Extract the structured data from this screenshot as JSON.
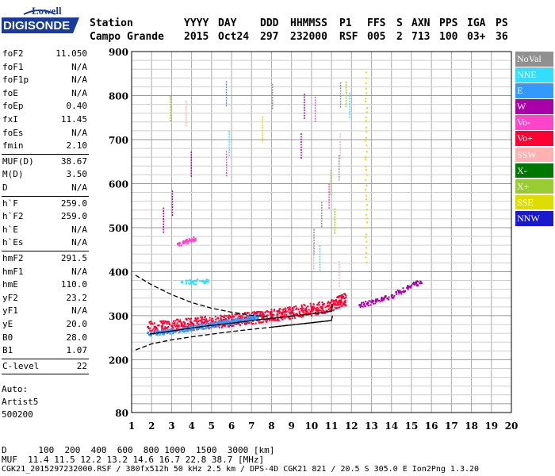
{
  "logo": {
    "line1": "Lowell",
    "line2": "DIGISONDE"
  },
  "header": {
    "row1": [
      "Station",
      "YYYY",
      "DAY",
      "DDD",
      "HHMMSS",
      "P1",
      "FFS",
      "S",
      "AXN",
      "PPS",
      "IGA",
      "PS"
    ],
    "row2": [
      "Campo Grande",
      "2015",
      "Oct24",
      "297",
      "232000",
      "RSF",
      "005",
      "2",
      "713",
      "100",
      "03+",
      "36"
    ]
  },
  "params": [
    {
      "k": "foF2",
      "v": "11.050"
    },
    {
      "k": "foF1",
      "v": "N/A"
    },
    {
      "k": "foF1p",
      "v": "N/A"
    },
    {
      "k": "foE",
      "v": "N/A"
    },
    {
      "k": "foEp",
      "v": "0.40"
    },
    {
      "k": "fxI",
      "v": "11.45"
    },
    {
      "k": "foEs",
      "v": "N/A"
    },
    {
      "k": "fmin",
      "v": "2.10"
    },
    {
      "k": "MUF(D)",
      "v": "38.67"
    },
    {
      "k": "M(D)",
      "v": "3.50"
    },
    {
      "k": "D",
      "v": "N/A"
    },
    {
      "k": "h`F",
      "v": "259.0"
    },
    {
      "k": "h`F2",
      "v": "259.0"
    },
    {
      "k": "h`E",
      "v": "N/A"
    },
    {
      "k": "h`Es",
      "v": "N/A"
    },
    {
      "k": "hmF2",
      "v": "291.5"
    },
    {
      "k": "hmF1",
      "v": "N/A"
    },
    {
      "k": "hmE",
      "v": "110.0"
    },
    {
      "k": "yF2",
      "v": "23.2"
    },
    {
      "k": "yF1",
      "v": "N/A"
    },
    {
      "k": "yE",
      "v": "20.0"
    },
    {
      "k": "B0",
      "v": "28.0"
    },
    {
      "k": "B1",
      "v": "1.07"
    },
    {
      "k": "C-level",
      "v": "22"
    }
  ],
  "auto": {
    "line1": "Auto:",
    "line2": "Artist5",
    "line3": "500200"
  },
  "legend": [
    {
      "label": "NoVal",
      "color": "#909090"
    },
    {
      "label": "NNE",
      "color": "#33ddff"
    },
    {
      "label": "E",
      "color": "#3399ff"
    },
    {
      "label": "W",
      "color": "#aa00aa"
    },
    {
      "label": "Vo-",
      "color": "#ff44cc"
    },
    {
      "label": "Vo+",
      "color": "#ff0033"
    },
    {
      "label": "SSW",
      "color": "#ffb0b0"
    },
    {
      "label": "X-",
      "color": "#007700"
    },
    {
      "label": "X+",
      "color": "#99cc33"
    },
    {
      "label": "SSE",
      "color": "#dddd00"
    },
    {
      "label": "NNW",
      "color": "#1a1acc"
    }
  ],
  "footer": {
    "d_line": "D      100  200  400  600  800 1000  1500  3000 [km]",
    "muf_line": "MUF  11.4 11.5 12.2 13.2 14.6 16.7 22.8 38.7 [MHz]",
    "info_line": "CGK21_2015297232000.RSF / 380fx512h 50 kHz 2.5 km / DPS-4D CGK21 821 / 20.5 S 305.0 E Ion2Png 1.3.20"
  },
  "chart_data": {
    "type": "scatter",
    "title": "",
    "xlabel": "",
    "ylabel": "",
    "xlim": [
      1,
      20
    ],
    "ylim": [
      80,
      900
    ],
    "x_ticks": [
      1,
      2,
      3,
      4,
      5,
      6,
      7,
      8,
      9,
      10,
      11,
      12,
      13,
      14,
      15,
      16,
      17,
      18,
      19,
      20
    ],
    "y_ticks": [
      80,
      200,
      300,
      400,
      500,
      600,
      700,
      800,
      900
    ],
    "grid": true,
    "legend_position": "right",
    "series": [
      {
        "name": "Vo+",
        "color": "#ff0033",
        "x": [
          1.8,
          2.5,
          3.0,
          3.5,
          4.0,
          4.5,
          5.0,
          5.5,
          6.0,
          6.5,
          7.0,
          7.5,
          8.0,
          8.5,
          9.0,
          9.5,
          10.0,
          10.5,
          11.0,
          11.4
        ],
        "y": [
          275,
          276,
          278,
          281,
          283,
          285,
          287,
          289,
          292,
          294,
          297,
          300,
          303,
          306,
          309,
          313,
          316,
          320,
          325,
          335
        ]
      },
      {
        "name": "E",
        "color": "#3399ff",
        "x": [
          1.8,
          2.5,
          3.0,
          3.5,
          4.0,
          4.5,
          5.0,
          5.5,
          6.0,
          6.5,
          7.0
        ],
        "y": [
          262,
          264,
          267,
          270,
          274,
          277,
          281,
          284,
          288,
          292,
          296
        ]
      },
      {
        "name": "W",
        "color": "#aa00aa",
        "x": [
          12.4,
          12.8,
          13.2,
          13.6,
          14.0,
          14.4,
          14.8,
          15.2
        ],
        "y": [
          325,
          330,
          334,
          340,
          347,
          356,
          365,
          375
        ]
      },
      {
        "name": "NNE",
        "color": "#33ddff",
        "x": [
          3.5,
          4.0,
          4.5
        ],
        "y": [
          377,
          378,
          379
        ]
      },
      {
        "name": "Vo-",
        "color": "#ff44cc",
        "x": [
          3.3,
          3.6,
          3.9
        ],
        "y": [
          464,
          468,
          472
        ]
      }
    ],
    "model_profile": {
      "name": "fit",
      "x": [
        1.9,
        3,
        4,
        5,
        6,
        7,
        8,
        9,
        10,
        11,
        11.05
      ],
      "y": [
        258,
        265,
        272,
        278,
        283,
        289,
        294,
        299,
        304,
        310,
        326
      ]
    },
    "bounds_upper": {
      "x": [
        1.2,
        2,
        3,
        4,
        5,
        6,
        7,
        8
      ],
      "y": [
        392,
        370,
        348,
        330,
        317,
        308,
        301,
        296
      ]
    },
    "bounds_lower": {
      "x": [
        1.2,
        2,
        3,
        4,
        5,
        6,
        7,
        8,
        9,
        10,
        11
      ],
      "y": [
        222,
        236,
        245,
        252,
        258,
        264,
        269,
        274,
        279,
        284,
        289
      ]
    }
  }
}
